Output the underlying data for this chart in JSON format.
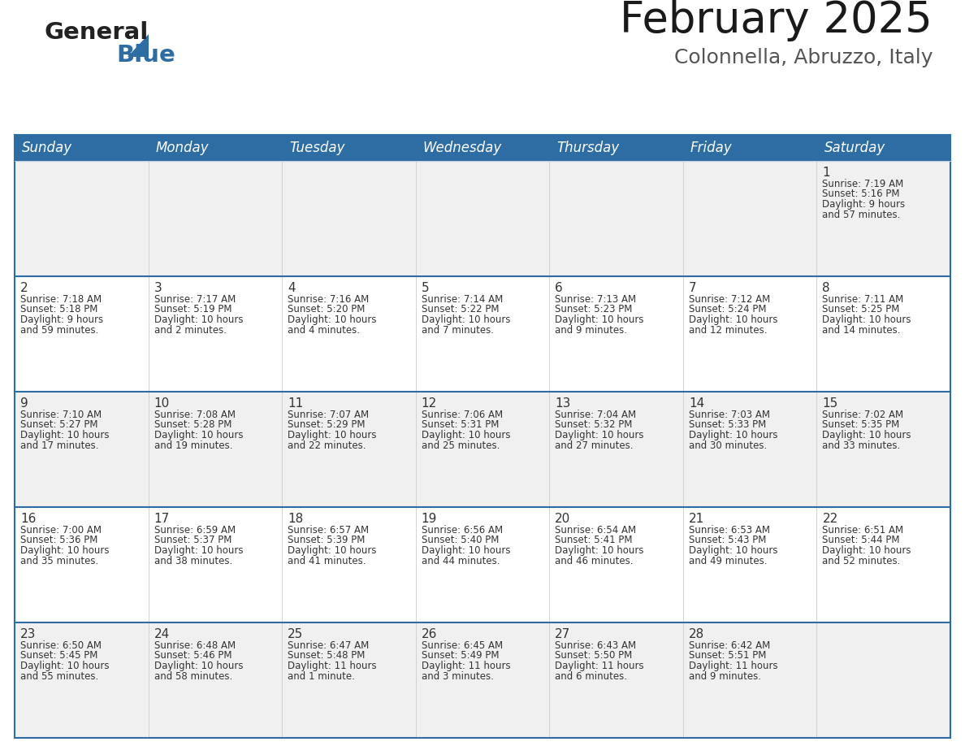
{
  "title": "February 2025",
  "subtitle": "Colonnella, Abruzzo, Italy",
  "header_bg": "#2E6DA4",
  "header_text": "#FFFFFF",
  "row_bg_odd": "#F0F0F0",
  "row_bg_even": "#FFFFFF",
  "border_color": "#2E6DA4",
  "cell_border_color": "#BBBBBB",
  "text_color": "#333333",
  "day_headers": [
    "Sunday",
    "Monday",
    "Tuesday",
    "Wednesday",
    "Thursday",
    "Friday",
    "Saturday"
  ],
  "calendar": [
    [
      null,
      null,
      null,
      null,
      null,
      null,
      {
        "day": 1,
        "sunrise": "7:19 AM",
        "sunset": "5:16 PM",
        "daylight_h": "9 hours",
        "daylight_m": "and 57 minutes."
      }
    ],
    [
      {
        "day": 2,
        "sunrise": "7:18 AM",
        "sunset": "5:18 PM",
        "daylight_h": "9 hours",
        "daylight_m": "and 59 minutes."
      },
      {
        "day": 3,
        "sunrise": "7:17 AM",
        "sunset": "5:19 PM",
        "daylight_h": "10 hours",
        "daylight_m": "and 2 minutes."
      },
      {
        "day": 4,
        "sunrise": "7:16 AM",
        "sunset": "5:20 PM",
        "daylight_h": "10 hours",
        "daylight_m": "and 4 minutes."
      },
      {
        "day": 5,
        "sunrise": "7:14 AM",
        "sunset": "5:22 PM",
        "daylight_h": "10 hours",
        "daylight_m": "and 7 minutes."
      },
      {
        "day": 6,
        "sunrise": "7:13 AM",
        "sunset": "5:23 PM",
        "daylight_h": "10 hours",
        "daylight_m": "and 9 minutes."
      },
      {
        "day": 7,
        "sunrise": "7:12 AM",
        "sunset": "5:24 PM",
        "daylight_h": "10 hours",
        "daylight_m": "and 12 minutes."
      },
      {
        "day": 8,
        "sunrise": "7:11 AM",
        "sunset": "5:25 PM",
        "daylight_h": "10 hours",
        "daylight_m": "and 14 minutes."
      }
    ],
    [
      {
        "day": 9,
        "sunrise": "7:10 AM",
        "sunset": "5:27 PM",
        "daylight_h": "10 hours",
        "daylight_m": "and 17 minutes."
      },
      {
        "day": 10,
        "sunrise": "7:08 AM",
        "sunset": "5:28 PM",
        "daylight_h": "10 hours",
        "daylight_m": "and 19 minutes."
      },
      {
        "day": 11,
        "sunrise": "7:07 AM",
        "sunset": "5:29 PM",
        "daylight_h": "10 hours",
        "daylight_m": "and 22 minutes."
      },
      {
        "day": 12,
        "sunrise": "7:06 AM",
        "sunset": "5:31 PM",
        "daylight_h": "10 hours",
        "daylight_m": "and 25 minutes."
      },
      {
        "day": 13,
        "sunrise": "7:04 AM",
        "sunset": "5:32 PM",
        "daylight_h": "10 hours",
        "daylight_m": "and 27 minutes."
      },
      {
        "day": 14,
        "sunrise": "7:03 AM",
        "sunset": "5:33 PM",
        "daylight_h": "10 hours",
        "daylight_m": "and 30 minutes."
      },
      {
        "day": 15,
        "sunrise": "7:02 AM",
        "sunset": "5:35 PM",
        "daylight_h": "10 hours",
        "daylight_m": "and 33 minutes."
      }
    ],
    [
      {
        "day": 16,
        "sunrise": "7:00 AM",
        "sunset": "5:36 PM",
        "daylight_h": "10 hours",
        "daylight_m": "and 35 minutes."
      },
      {
        "day": 17,
        "sunrise": "6:59 AM",
        "sunset": "5:37 PM",
        "daylight_h": "10 hours",
        "daylight_m": "and 38 minutes."
      },
      {
        "day": 18,
        "sunrise": "6:57 AM",
        "sunset": "5:39 PM",
        "daylight_h": "10 hours",
        "daylight_m": "and 41 minutes."
      },
      {
        "day": 19,
        "sunrise": "6:56 AM",
        "sunset": "5:40 PM",
        "daylight_h": "10 hours",
        "daylight_m": "and 44 minutes."
      },
      {
        "day": 20,
        "sunrise": "6:54 AM",
        "sunset": "5:41 PM",
        "daylight_h": "10 hours",
        "daylight_m": "and 46 minutes."
      },
      {
        "day": 21,
        "sunrise": "6:53 AM",
        "sunset": "5:43 PM",
        "daylight_h": "10 hours",
        "daylight_m": "and 49 minutes."
      },
      {
        "day": 22,
        "sunrise": "6:51 AM",
        "sunset": "5:44 PM",
        "daylight_h": "10 hours",
        "daylight_m": "and 52 minutes."
      }
    ],
    [
      {
        "day": 23,
        "sunrise": "6:50 AM",
        "sunset": "5:45 PM",
        "daylight_h": "10 hours",
        "daylight_m": "and 55 minutes."
      },
      {
        "day": 24,
        "sunrise": "6:48 AM",
        "sunset": "5:46 PM",
        "daylight_h": "10 hours",
        "daylight_m": "and 58 minutes."
      },
      {
        "day": 25,
        "sunrise": "6:47 AM",
        "sunset": "5:48 PM",
        "daylight_h": "11 hours",
        "daylight_m": "and 1 minute."
      },
      {
        "day": 26,
        "sunrise": "6:45 AM",
        "sunset": "5:49 PM",
        "daylight_h": "11 hours",
        "daylight_m": "and 3 minutes."
      },
      {
        "day": 27,
        "sunrise": "6:43 AM",
        "sunset": "5:50 PM",
        "daylight_h": "11 hours",
        "daylight_m": "and 6 minutes."
      },
      {
        "day": 28,
        "sunrise": "6:42 AM",
        "sunset": "5:51 PM",
        "daylight_h": "11 hours",
        "daylight_m": "and 9 minutes."
      },
      null
    ]
  ],
  "title_fontsize": 38,
  "subtitle_fontsize": 18,
  "header_fontsize": 12,
  "day_num_fontsize": 11,
  "cell_text_fontsize": 8.5
}
